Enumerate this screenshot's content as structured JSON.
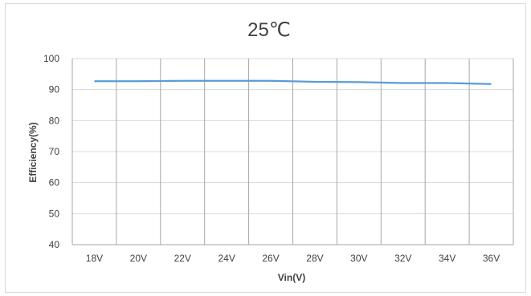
{
  "chart_data": {
    "type": "line",
    "title": "25℃",
    "xlabel": "Vin(V)",
    "ylabel": "Efficiency(%)",
    "categories": [
      "18V",
      "20V",
      "22V",
      "24V",
      "26V",
      "28V",
      "30V",
      "32V",
      "34V",
      "36V"
    ],
    "ylim": [
      40,
      100
    ],
    "yticks": [
      40,
      50,
      60,
      70,
      80,
      90,
      100
    ],
    "grid": true,
    "legend": "none",
    "series": [
      {
        "values": [
          92.7,
          92.7,
          92.8,
          92.8,
          92.8,
          92.5,
          92.4,
          92.1,
          92.1,
          91.8
        ],
        "color": "#5b9bd5"
      }
    ]
  }
}
